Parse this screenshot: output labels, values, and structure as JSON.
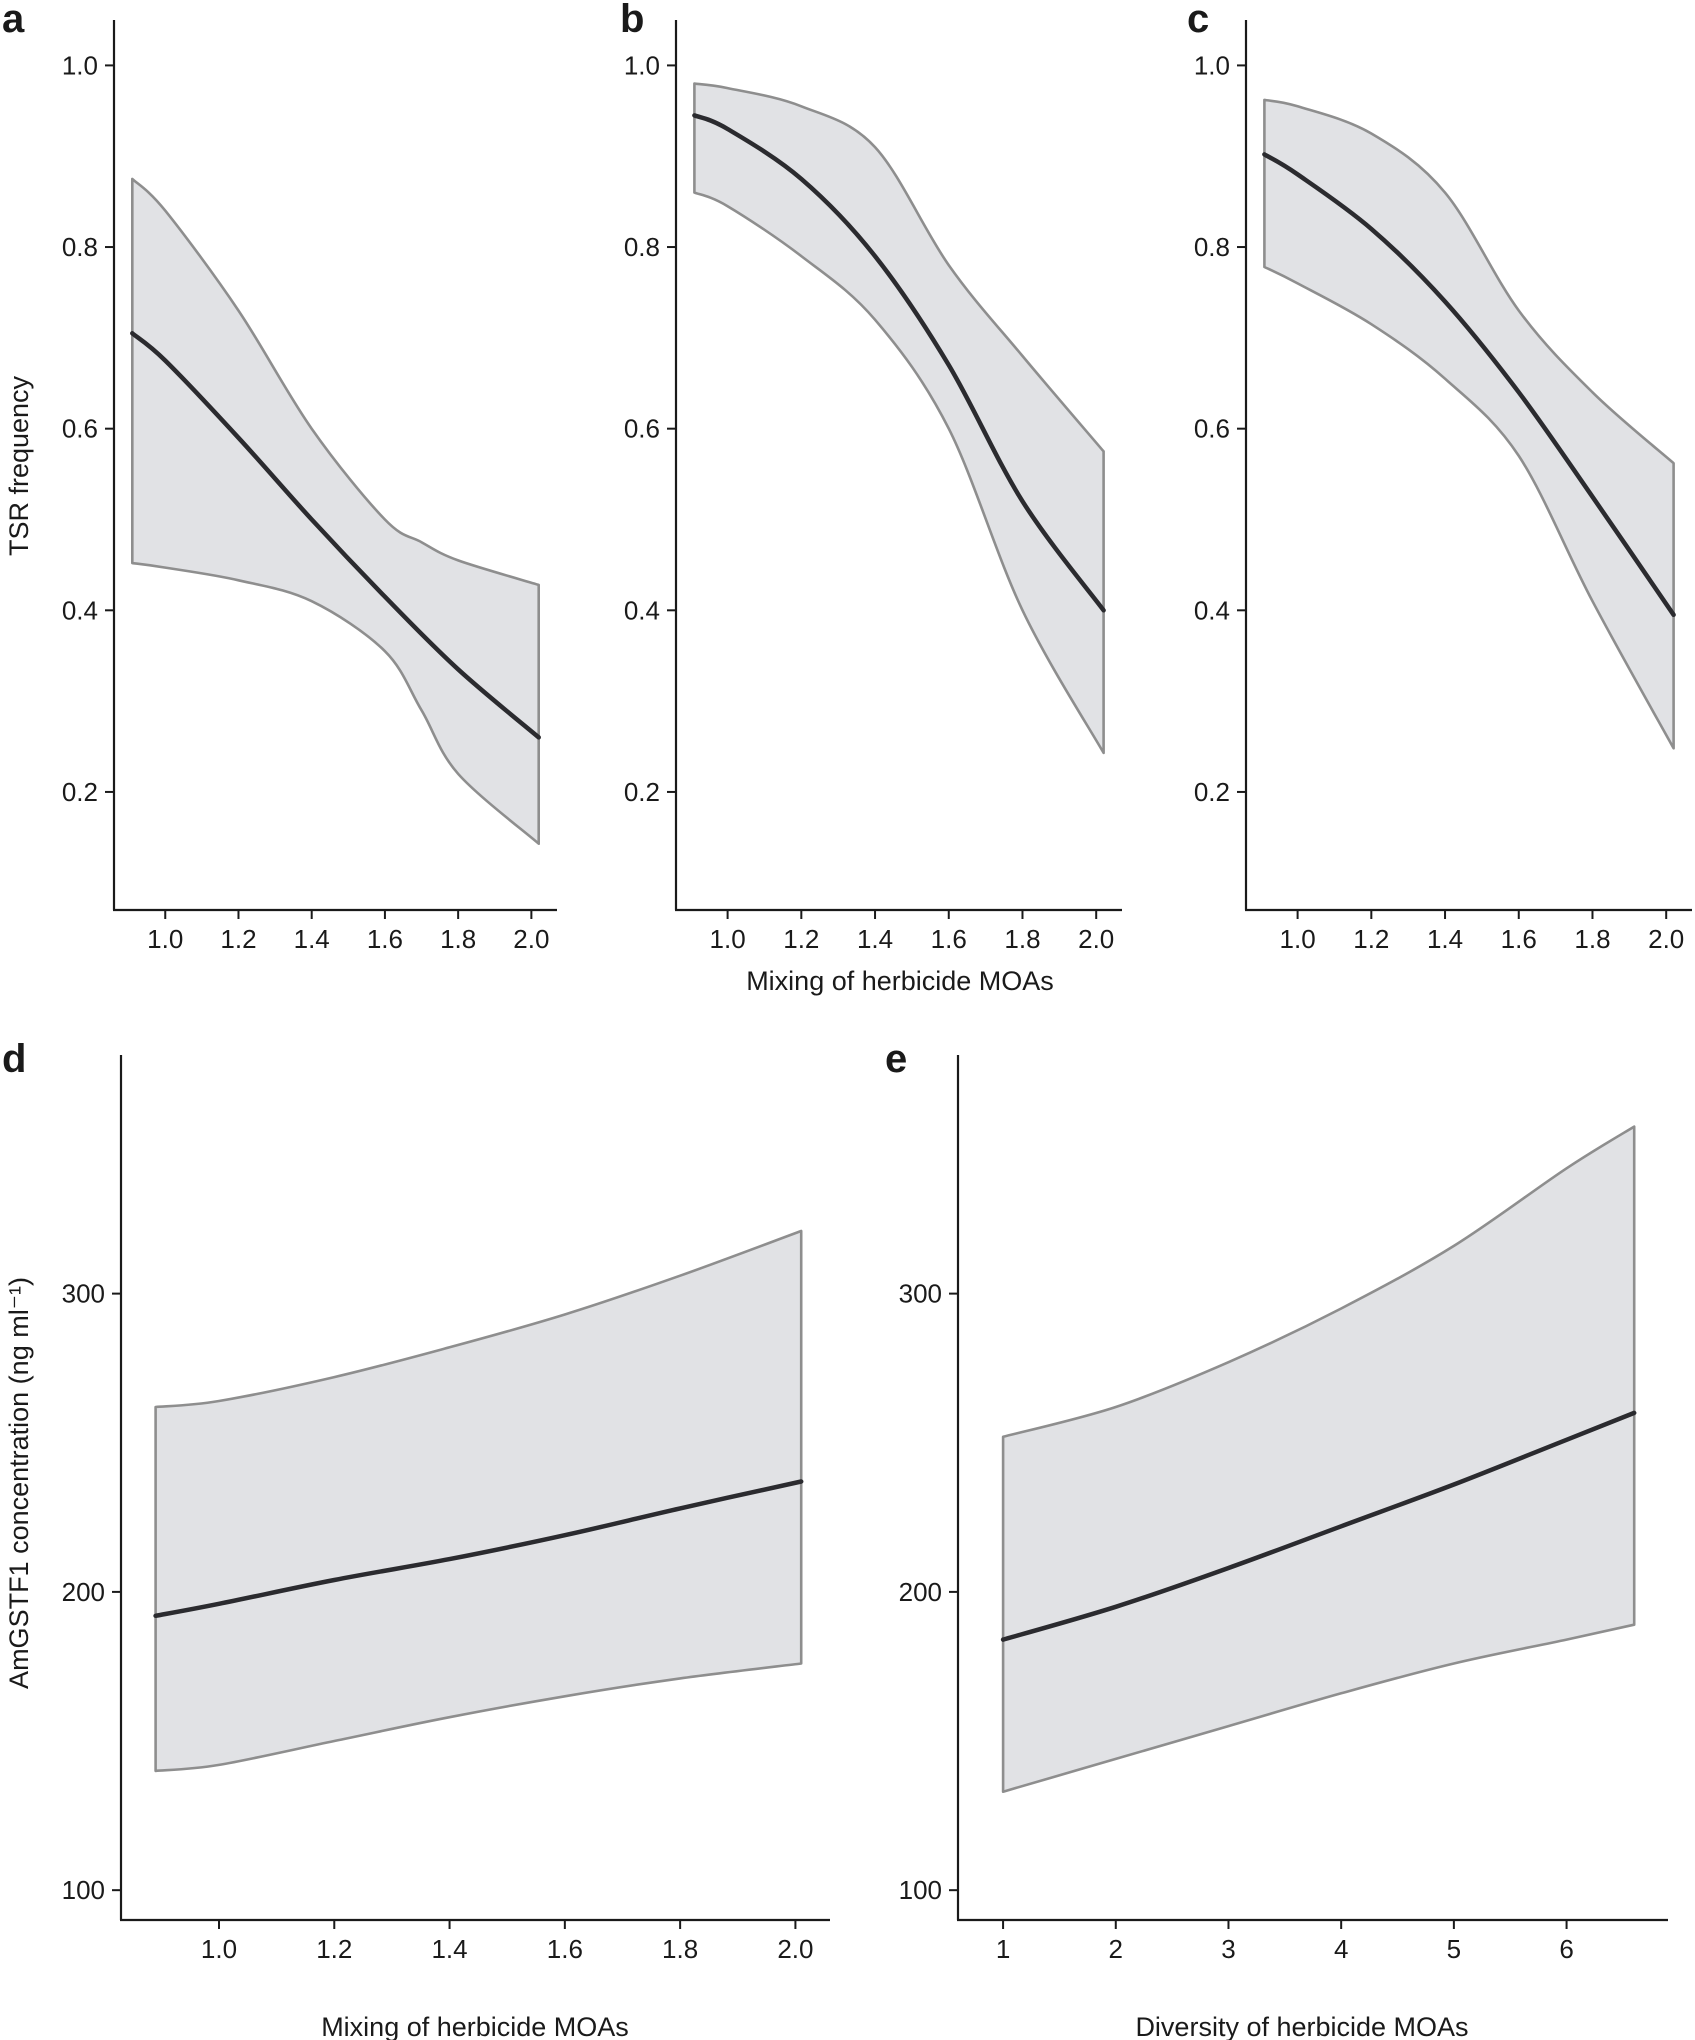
{
  "colors": {
    "band_fill": "#e1e2e5",
    "band_edge": "#8e8e8e",
    "line": "#2b2b2f",
    "axis": "#1a1a1a"
  },
  "chart_data": [
    {
      "panel": "a",
      "type": "line",
      "title": "",
      "xlabel": "",
      "ylabel": "TSR frequency",
      "xlim": [
        0.86,
        2.07
      ],
      "ylim": [
        0.07,
        1.05
      ],
      "xticks": [
        1.0,
        1.2,
        1.4,
        1.6,
        1.8,
        2.0
      ],
      "xtick_labels": [
        "1.0",
        "1.2",
        "1.4",
        "1.6",
        "1.8",
        "2.0"
      ],
      "yticks": [
        0.2,
        0.4,
        0.6,
        0.8,
        1.0
      ],
      "ytick_labels": [
        "0.2",
        "0.4",
        "0.6",
        "0.8",
        "1.0"
      ],
      "series": [
        {
          "name": "fit",
          "x": [
            0.91,
            1.0,
            1.2,
            1.4,
            1.6,
            1.8,
            2.02
          ],
          "values": [
            0.705,
            0.675,
            0.59,
            0.5,
            0.415,
            0.335,
            0.26
          ]
        },
        {
          "name": "ci_upper",
          "x": [
            0.91,
            1.0,
            1.2,
            1.4,
            1.6,
            1.7,
            1.8,
            2.02
          ],
          "values": [
            0.875,
            0.84,
            0.73,
            0.6,
            0.5,
            0.475,
            0.455,
            0.428
          ]
        },
        {
          "name": "ci_lower",
          "x": [
            0.91,
            1.0,
            1.2,
            1.4,
            1.6,
            1.7,
            1.8,
            2.02
          ],
          "values": [
            0.452,
            0.447,
            0.433,
            0.41,
            0.355,
            0.29,
            0.22,
            0.143
          ]
        }
      ]
    },
    {
      "panel": "b",
      "type": "line",
      "title": "",
      "xlabel": "Mixing of herbicide MOAs",
      "ylabel": "",
      "xlim": [
        0.86,
        2.07
      ],
      "ylim": [
        0.07,
        1.05
      ],
      "xticks": [
        1.0,
        1.2,
        1.4,
        1.6,
        1.8,
        2.0
      ],
      "xtick_labels": [
        "1.0",
        "1.2",
        "1.4",
        "1.6",
        "1.8",
        "2.0"
      ],
      "yticks": [
        0.2,
        0.4,
        0.6,
        0.8,
        1.0
      ],
      "ytick_labels": [
        "0.2",
        "0.4",
        "0.6",
        "0.8",
        "1.0"
      ],
      "series": [
        {
          "name": "fit",
          "x": [
            0.91,
            1.0,
            1.2,
            1.4,
            1.6,
            1.8,
            2.02
          ],
          "values": [
            0.945,
            0.93,
            0.875,
            0.79,
            0.67,
            0.52,
            0.4
          ]
        },
        {
          "name": "ci_upper",
          "x": [
            0.91,
            1.0,
            1.2,
            1.4,
            1.6,
            1.8,
            2.02
          ],
          "values": [
            0.98,
            0.975,
            0.955,
            0.91,
            0.78,
            0.68,
            0.575
          ]
        },
        {
          "name": "ci_lower",
          "x": [
            0.91,
            1.0,
            1.2,
            1.4,
            1.6,
            1.8,
            2.02
          ],
          "values": [
            0.86,
            0.845,
            0.79,
            0.72,
            0.6,
            0.4,
            0.243
          ]
        }
      ]
    },
    {
      "panel": "c",
      "type": "line",
      "title": "",
      "xlabel": "",
      "ylabel": "",
      "xlim": [
        0.86,
        2.07
      ],
      "ylim": [
        0.07,
        1.05
      ],
      "xticks": [
        1.0,
        1.2,
        1.4,
        1.6,
        1.8,
        2.0
      ],
      "xtick_labels": [
        "1.0",
        "1.2",
        "1.4",
        "1.6",
        "1.8",
        "2.0"
      ],
      "yticks": [
        0.2,
        0.4,
        0.6,
        0.8,
        1.0
      ],
      "ytick_labels": [
        "0.2",
        "0.4",
        "0.6",
        "0.8",
        "1.0"
      ],
      "series": [
        {
          "name": "fit",
          "x": [
            0.91,
            1.0,
            1.2,
            1.4,
            1.6,
            1.8,
            2.02
          ],
          "values": [
            0.902,
            0.88,
            0.82,
            0.74,
            0.64,
            0.525,
            0.395
          ]
        },
        {
          "name": "ci_upper",
          "x": [
            0.91,
            1.0,
            1.2,
            1.4,
            1.6,
            1.8,
            2.02
          ],
          "values": [
            0.962,
            0.955,
            0.925,
            0.86,
            0.73,
            0.64,
            0.562
          ]
        },
        {
          "name": "ci_lower",
          "x": [
            0.91,
            1.0,
            1.2,
            1.4,
            1.6,
            1.8,
            2.02
          ],
          "values": [
            0.778,
            0.76,
            0.715,
            0.655,
            0.57,
            0.41,
            0.248
          ]
        }
      ]
    },
    {
      "panel": "d",
      "type": "line",
      "title": "",
      "xlabel": "Mixing of herbicide MOAs",
      "ylabel": "AmGSTF1 concentration (ng ml⁻¹)",
      "xlim": [
        0.83,
        2.06
      ],
      "ylim": [
        90,
        380
      ],
      "xticks": [
        1.0,
        1.2,
        1.4,
        1.6,
        1.8,
        2.0
      ],
      "xtick_labels": [
        "1.0",
        "1.2",
        "1.4",
        "1.6",
        "1.8",
        "2.0"
      ],
      "yticks": [
        100,
        200,
        300
      ],
      "ytick_labels": [
        "100",
        "200",
        "300"
      ],
      "series": [
        {
          "name": "fit",
          "x": [
            0.89,
            1.0,
            1.2,
            1.4,
            1.6,
            1.8,
            2.01
          ],
          "values": [
            192,
            196,
            204,
            211,
            219,
            228,
            237
          ]
        },
        {
          "name": "ci_upper",
          "x": [
            0.89,
            1.0,
            1.2,
            1.4,
            1.6,
            1.8,
            2.01
          ],
          "values": [
            262,
            264,
            272,
            282,
            293,
            306,
            321
          ]
        },
        {
          "name": "ci_lower",
          "x": [
            0.89,
            1.0,
            1.2,
            1.4,
            1.6,
            1.8,
            2.01
          ],
          "values": [
            140,
            142,
            150,
            158,
            165,
            171,
            176
          ]
        }
      ]
    },
    {
      "panel": "e",
      "type": "line",
      "title": "",
      "xlabel": "Diversity of herbicide MOAs",
      "ylabel": "",
      "xlim": [
        0.6,
        6.9
      ],
      "ylim": [
        90,
        380
      ],
      "xticks": [
        1,
        2,
        3,
        4,
        5,
        6
      ],
      "xtick_labels": [
        "1",
        "2",
        "3",
        "4",
        "5",
        "6"
      ],
      "yticks": [
        100,
        200,
        300
      ],
      "ytick_labels": [
        "100",
        "200",
        "300"
      ],
      "series": [
        {
          "name": "fit",
          "x": [
            1,
            2,
            3,
            4,
            5,
            6,
            6.6
          ],
          "values": [
            184,
            195,
            208,
            222,
            236,
            251,
            260
          ]
        },
        {
          "name": "ci_upper",
          "x": [
            1,
            2,
            3,
            4,
            5,
            6,
            6.6
          ],
          "values": [
            252,
            262,
            277,
            295,
            316,
            342,
            356
          ]
        },
        {
          "name": "ci_lower",
          "x": [
            1,
            2,
            3,
            4,
            5,
            6,
            6.6
          ],
          "values": [
            133,
            144,
            155,
            166,
            176,
            184,
            189
          ]
        }
      ]
    }
  ]
}
